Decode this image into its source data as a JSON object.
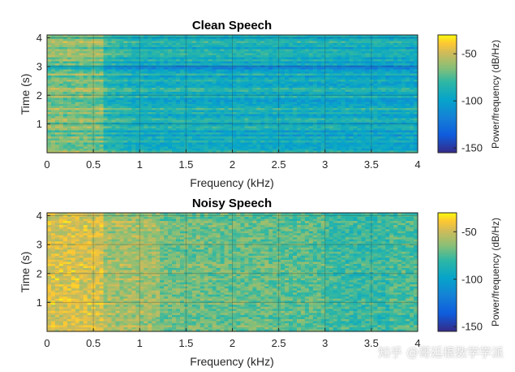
{
  "chart_data": [
    {
      "type": "heatmap",
      "title": "Clean Speech",
      "xlabel": "Frequency (kHz)",
      "ylabel": "Time (s)",
      "xlim": [
        0,
        4
      ],
      "ylim": [
        0,
        4.1
      ],
      "xticks": [
        "0",
        "0.5",
        "1",
        "1.5",
        "2",
        "2.5",
        "3",
        "3.5",
        "4"
      ],
      "yticks": [
        "1",
        "2",
        "3",
        "4"
      ],
      "colorbar": {
        "label": "Power/frequency (dB/Hz)",
        "ticks": [
          "-50",
          "-100",
          "-150"
        ],
        "range": [
          -155,
          -30
        ]
      },
      "grid": true,
      "profile": "clean"
    },
    {
      "type": "heatmap",
      "title": "Noisy Speech",
      "xlabel": "Frequency (kHz)",
      "ylabel": "Time (s)",
      "xlim": [
        0,
        4
      ],
      "ylim": [
        0,
        4.1
      ],
      "xticks": [
        "0",
        "0.5",
        "1",
        "1.5",
        "2",
        "2.5",
        "3",
        "3.5",
        "4"
      ],
      "yticks": [
        "1",
        "2",
        "3",
        "4"
      ],
      "colorbar": {
        "label": "Power/frequency (dB/Hz)",
        "ticks": [
          "-50",
          "-100",
          "-150"
        ],
        "range": [
          -155,
          -30
        ]
      },
      "grid": true,
      "profile": "noisy"
    }
  ],
  "watermark": "知乎 @哥廷根数学学派"
}
